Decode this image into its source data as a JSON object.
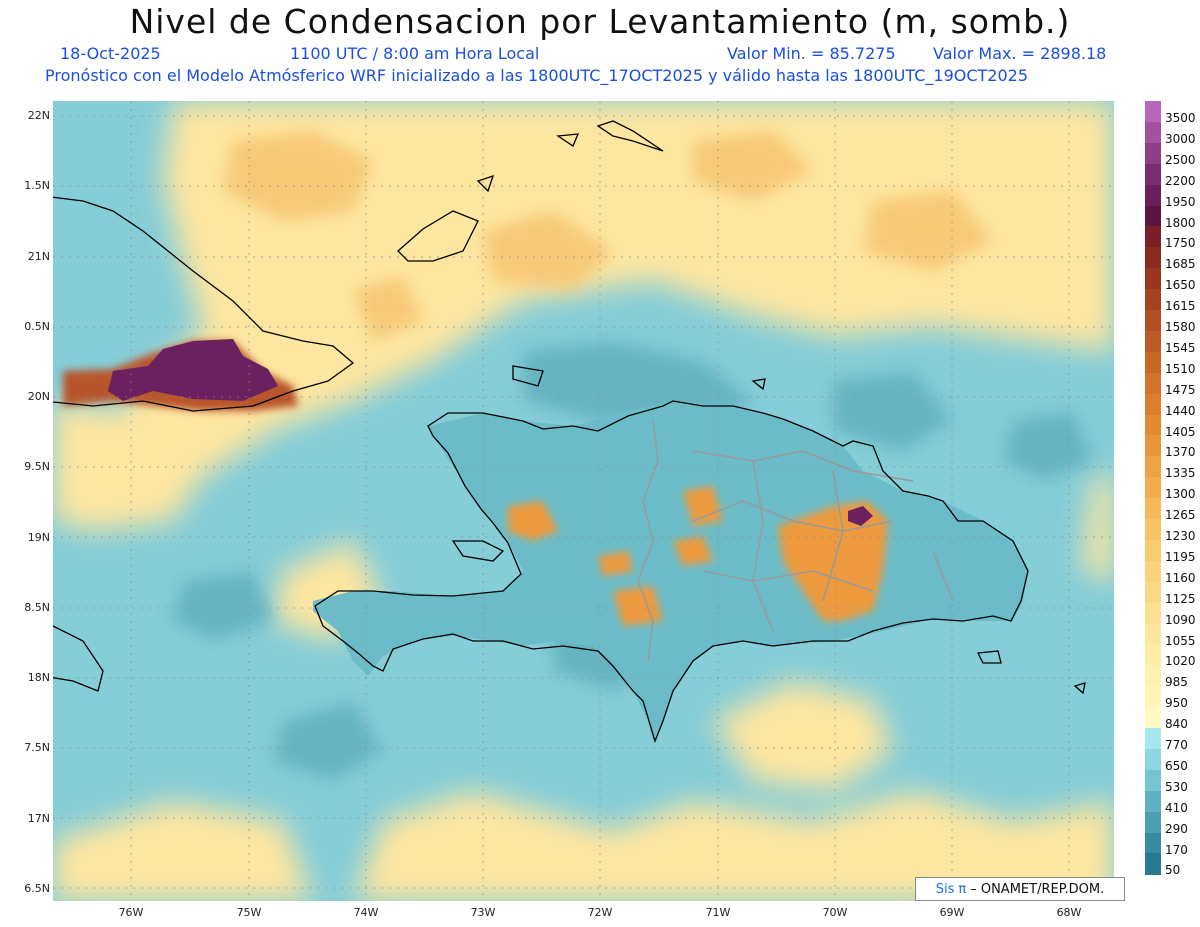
{
  "title": "Nivel de Condensacion por Levantamiento (m, somb.)",
  "header": {
    "date": "18-Oct-2025",
    "time": "1100 UTC / 8:00 am Hora Local",
    "min_label": "Valor Min. = 85.7275",
    "max_label": "Valor Max. = 2898.18",
    "description": "Pronóstico con el Modelo Atmósferico WRF inicializado a las 1800UTC_17OCT2025 y válido hasta las  1800UTC_19OCT2025"
  },
  "axes": {
    "y_labels": [
      "22N",
      "1.5N",
      "21N",
      "0.5N",
      "20N",
      "9.5N",
      "19N",
      "8.5N",
      "18N",
      "7.5N",
      "17N",
      "6.5N"
    ],
    "x_labels": [
      "76W",
      "75W",
      "74W",
      "73W",
      "72W",
      "71W",
      "70W",
      "69W",
      "68W"
    ]
  },
  "legend": {
    "levels": [
      {
        "label": "3500",
        "color": "#b766b8"
      },
      {
        "label": "3000",
        "color": "#a4529f"
      },
      {
        "label": "2500",
        "color": "#8e3d87"
      },
      {
        "label": "2200",
        "color": "#7a2d6f"
      },
      {
        "label": "1950",
        "color": "#681f5a"
      },
      {
        "label": "1800",
        "color": "#5a1541"
      },
      {
        "label": "1750",
        "color": "#7a1f28"
      },
      {
        "label": "1685",
        "color": "#8b2a1e"
      },
      {
        "label": "1650",
        "color": "#9a3520"
      },
      {
        "label": "1615",
        "color": "#a84022"
      },
      {
        "label": "1580",
        "color": "#b44d24"
      },
      {
        "label": "1545",
        "color": "#bf5a26"
      },
      {
        "label": "1510",
        "color": "#c96628"
      },
      {
        "label": "1475",
        "color": "#d3722a"
      },
      {
        "label": "1440",
        "color": "#dc7e2d"
      },
      {
        "label": "1405",
        "color": "#e38a33"
      },
      {
        "label": "1370",
        "color": "#e9963b"
      },
      {
        "label": "1335",
        "color": "#eea244"
      },
      {
        "label": "1300",
        "color": "#f2ad4f"
      },
      {
        "label": "1265",
        "color": "#f5b85a"
      },
      {
        "label": "1230",
        "color": "#f7c266"
      },
      {
        "label": "1195",
        "color": "#f9cb71"
      },
      {
        "label": "1160",
        "color": "#fad37c"
      },
      {
        "label": "1125",
        "color": "#fbda87"
      },
      {
        "label": "1090",
        "color": "#fce192"
      },
      {
        "label": "1055",
        "color": "#fde79c"
      },
      {
        "label": "1020",
        "color": "#feeda6"
      },
      {
        "label": "985",
        "color": "#fef2b0"
      },
      {
        "label": "950",
        "color": "#fff5b8"
      },
      {
        "label": "840",
        "color": "#fffac4"
      },
      {
        "label": "770",
        "color": "#a6e6ee"
      },
      {
        "label": "650",
        "color": "#8ed6e0"
      },
      {
        "label": "530",
        "color": "#76c4d1"
      },
      {
        "label": "410",
        "color": "#60b2c2"
      },
      {
        "label": "290",
        "color": "#4b9fb2"
      },
      {
        "label": "170",
        "color": "#388ca2"
      },
      {
        "label": "50",
        "color": "#277a92"
      }
    ]
  },
  "credit": {
    "sis": "Sis",
    "pi": "π",
    "rest": "– ONAMET/REP.DOM."
  },
  "colors": {
    "ocean": "#7cc7d2",
    "yellow": "#fde9a3",
    "orange": "#ee9b3c",
    "purple": "#6b2060",
    "coast": "#000000",
    "borders": "#999999"
  }
}
